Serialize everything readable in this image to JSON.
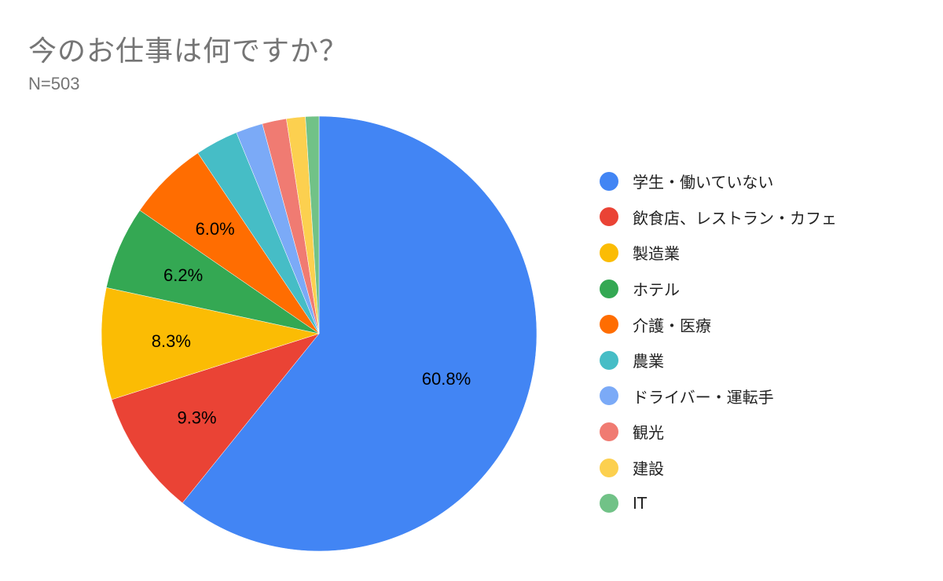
{
  "header": {
    "title": "今のお仕事は何ですか？",
    "subtitle": "N=503"
  },
  "chart_data": {
    "type": "pie",
    "title": "今のお仕事は何ですか？",
    "subtitle": "N=503",
    "legend_position": "right",
    "categories": [
      "学生・働いていない",
      "飲食店、レストラン・カフェ",
      "製造業",
      "ホテル",
      "介護・医療",
      "農業",
      "ドライバー・運転手",
      "観光",
      "建設",
      "IT"
    ],
    "values": [
      60.8,
      9.3,
      8.3,
      6.2,
      6.0,
      3.2,
      2.0,
      1.8,
      1.4,
      1.0
    ],
    "labels": [
      "60.8%",
      "9.3%",
      "8.3%",
      "6.2%",
      "6.0%",
      "",
      "",
      "",
      "",
      ""
    ],
    "colors": [
      "#4285f4",
      "#ea4335",
      "#fbbc04",
      "#34a853",
      "#ff6d01",
      "#46bdc6",
      "#7baaf7",
      "#f07b72",
      "#fcd04f",
      "#71c287"
    ]
  },
  "legend": {
    "items": [
      {
        "label": "学生・働いていない",
        "color": "#4285f4"
      },
      {
        "label": "飲食店、レストラン・カフェ",
        "color": "#ea4335"
      },
      {
        "label": "製造業",
        "color": "#fbbc04"
      },
      {
        "label": "ホテル",
        "color": "#34a853"
      },
      {
        "label": "介護・医療",
        "color": "#ff6d01"
      },
      {
        "label": "農業",
        "color": "#46bdc6"
      },
      {
        "label": "ドライバー・運転手",
        "color": "#7baaf7"
      },
      {
        "label": "観光",
        "color": "#f07b72"
      },
      {
        "label": "建設",
        "color": "#fcd04f"
      },
      {
        "label": "IT",
        "color": "#71c287"
      }
    ]
  }
}
